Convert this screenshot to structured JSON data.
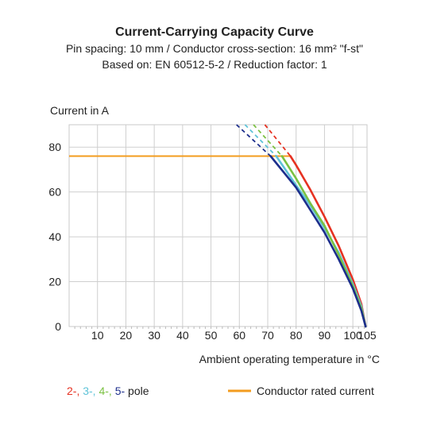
{
  "chart_data": {
    "type": "line",
    "title": "Current-Carrying Capacity Curve",
    "subtitle_1": "Pin spacing: 10 mm / Conductor cross-section: 16 mm² \"f-st\"",
    "subtitle_2": "Based on: EN 60512-5-2 / Reduction factor: 1",
    "ylabel": "Current in A",
    "xlabel": "Ambient operating temperature in °C",
    "xlim": [
      0,
      105
    ],
    "ylim": [
      0,
      90
    ],
    "x_ticks": [
      10,
      20,
      30,
      40,
      50,
      60,
      70,
      80,
      90,
      100,
      105
    ],
    "y_ticks": [
      0,
      20,
      40,
      60,
      80
    ],
    "grid": true,
    "legend_position": "bottom",
    "legend": {
      "poles": [
        {
          "label": "2-,",
          "color": "#e63222"
        },
        {
          "label": "3-,",
          "color": "#5fc3d8"
        },
        {
          "label": "4-,",
          "color": "#7bc142"
        },
        {
          "label": "5-",
          "color": "#1c2e8c"
        }
      ],
      "poles_suffix": "pole",
      "rated": {
        "label": "Conductor rated current",
        "color": "#f39c1f"
      }
    },
    "rated_current": {
      "name": "Conductor rated current",
      "color": "#f39c1f",
      "y": 76,
      "x_range": [
        0,
        78
      ]
    },
    "series": [
      {
        "name": "2-",
        "color": "#e63222",
        "dashed": [
          [
            69,
            90
          ],
          [
            78,
            76
          ]
        ],
        "solid": [
          [
            78,
            76
          ],
          [
            80,
            72
          ],
          [
            85,
            61
          ],
          [
            90,
            49
          ],
          [
            95,
            36
          ],
          [
            100,
            21
          ],
          [
            103,
            10
          ],
          [
            104.5,
            0
          ]
        ]
      },
      {
        "name": "3-",
        "color": "#5fc3d8",
        "dashed": [
          [
            62,
            90
          ],
          [
            73,
            76
          ]
        ],
        "solid": [
          [
            73,
            76
          ],
          [
            80,
            63
          ],
          [
            85,
            54
          ],
          [
            90,
            44
          ],
          [
            95,
            33
          ],
          [
            100,
            19
          ],
          [
            103,
            9
          ],
          [
            104.5,
            0
          ]
        ]
      },
      {
        "name": "4-",
        "color": "#7bc142",
        "dashed": [
          [
            65,
            90
          ],
          [
            75,
            76
          ]
        ],
        "solid": [
          [
            75,
            76
          ],
          [
            80,
            66
          ],
          [
            85,
            55
          ],
          [
            90,
            45
          ],
          [
            95,
            32
          ],
          [
            100,
            18
          ],
          [
            103,
            8
          ],
          [
            104.5,
            0
          ]
        ]
      },
      {
        "name": "5-",
        "color": "#1c2e8c",
        "dashed": [
          [
            59,
            90
          ],
          [
            71,
            76
          ]
        ],
        "solid": [
          [
            71,
            76
          ],
          [
            80,
            62
          ],
          [
            85,
            52
          ],
          [
            90,
            42
          ],
          [
            95,
            30
          ],
          [
            100,
            17
          ],
          [
            103,
            7
          ],
          [
            104.5,
            0
          ]
        ]
      }
    ]
  }
}
